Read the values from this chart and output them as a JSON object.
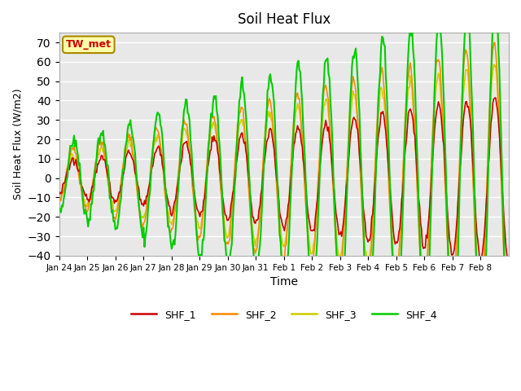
{
  "title": "Soil Heat Flux",
  "xlabel": "Time",
  "ylabel": "Soil Heat Flux (W/m2)",
  "ylim": [
    -40,
    75
  ],
  "yticks": [
    -40,
    -30,
    -20,
    -10,
    0,
    10,
    20,
    30,
    40,
    50,
    60,
    70
  ],
  "background_color": "#ffffff",
  "plot_bg_color": "#e8e8e8",
  "grid_color": "#ffffff",
  "annotation_text": "TW_met",
  "annotation_bg": "#ffffaa",
  "annotation_border": "#aa8800",
  "annotation_text_color": "#cc0000",
  "line_colors": {
    "SHF_1": "#cc0000",
    "SHF_2": "#ff8800",
    "SHF_3": "#cccc00",
    "SHF_4": "#00cc00"
  },
  "legend_labels": [
    "SHF_1",
    "SHF_2",
    "SHF_3",
    "SHF_4"
  ],
  "x_tick_labels": [
    "Jan 24",
    "Jan 25",
    "Jan 26",
    "Jan 27",
    "Jan 28",
    "Jan 29",
    "Jan 30",
    "Jan 31",
    "Feb 1",
    "Feb 2",
    "Feb 3",
    "Feb 4",
    "Feb 5",
    "Feb 6",
    "Feb 7",
    "Feb 8"
  ],
  "n_points": 480
}
